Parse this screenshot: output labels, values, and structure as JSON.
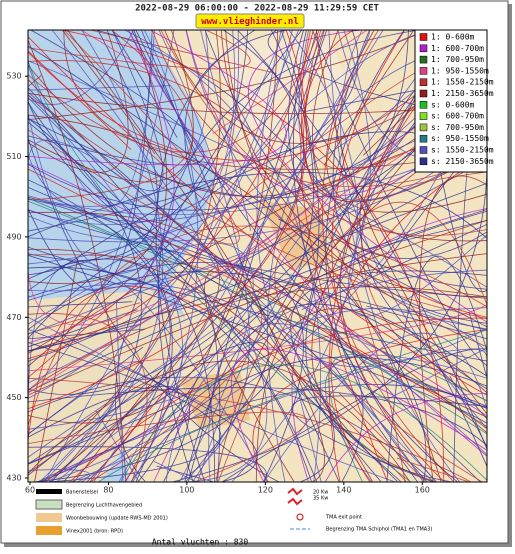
{
  "header": {
    "title": "2022-08-29 06:00:00 - 2022-08-29 11:29:59 CET",
    "site": "www.vlieghinder.nl"
  },
  "map": {
    "xlim": [
      59.5,
      176.5
    ],
    "ylim": [
      429,
      541.5
    ],
    "xticks": [
      60,
      80,
      100,
      120,
      140,
      160
    ],
    "yticks": [
      430,
      450,
      470,
      490,
      510,
      530
    ]
  },
  "legend": [
    {
      "label": "1: 0-600m",
      "color": "#e01010"
    },
    {
      "label": "1: 600-700m",
      "color": "#b020d0"
    },
    {
      "label": "1: 700-950m",
      "color": "#207020"
    },
    {
      "label": "1: 950-1550m",
      "color": "#e04080"
    },
    {
      "label": "1: 1550-2150m",
      "color": "#c03030"
    },
    {
      "label": "1: 2150-3650m",
      "color": "#902020"
    },
    {
      "label": "s: 0-600m",
      "color": "#20c020"
    },
    {
      "label": "s: 600-700m",
      "color": "#80e020"
    },
    {
      "label": "s: 700-950m",
      "color": "#a0c040"
    },
    {
      "label": "s: 950-1550m",
      "color": "#208080"
    },
    {
      "label": "s: 1550-2150m",
      "color": "#5050c0"
    },
    {
      "label": "s: 2150-3650m",
      "color": "#303090"
    }
  ],
  "bottom_legend": {
    "left": [
      "Banenstelsel",
      "Begrenzing Luchthavengebied",
      "Woonbebouwing (update RWS-MD 2001)",
      "Vinex2001 (bron: RPD)"
    ],
    "kw": [
      "20 Kw",
      "35 Kw"
    ],
    "right": [
      "TMA exit point",
      "Begrenzing TMA Schiphol  (TMA1 en TMA3)"
    ]
  },
  "footer": "Antal vluchten : 830"
}
